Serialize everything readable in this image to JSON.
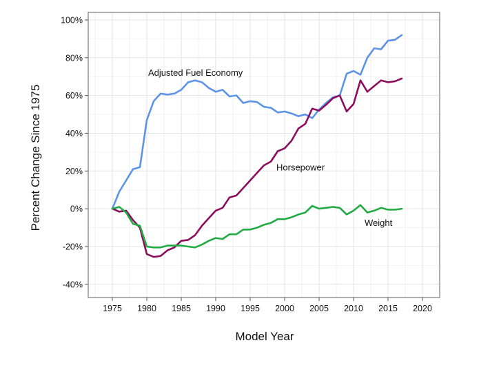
{
  "chart_data": {
    "type": "line",
    "title": "",
    "xlabel": "Model Year",
    "ylabel": "Percent Change Since 1975",
    "xlim": [
      1971.5,
      2022.5
    ],
    "ylim": [
      -47,
      104
    ],
    "grid": true,
    "x_ticks": [
      1975,
      1980,
      1985,
      1990,
      1995,
      2000,
      2005,
      2010,
      2015,
      2020
    ],
    "x_tick_labels": [
      "1975",
      "1980",
      "1985",
      "1990",
      "1995",
      "2000",
      "2005",
      "2010",
      "2015",
      "2020"
    ],
    "y_ticks": [
      -40,
      -20,
      0,
      20,
      40,
      60,
      80,
      100
    ],
    "y_tick_labels": [
      "-40%",
      "-20%",
      "0%",
      "20%",
      "40%",
      "60%",
      "80%",
      "100%"
    ],
    "x": [
      1975,
      1976,
      1977,
      1978,
      1979,
      1980,
      1981,
      1982,
      1983,
      1984,
      1985,
      1986,
      1987,
      1988,
      1989,
      1990,
      1991,
      1992,
      1993,
      1994,
      1995,
      1996,
      1997,
      1998,
      1999,
      2000,
      2001,
      2002,
      2003,
      2004,
      2005,
      2006,
      2007,
      2008,
      2009,
      2010,
      2011,
      2012,
      2013,
      2014,
      2015,
      2016,
      2017
    ],
    "series": [
      {
        "name": "Adjusted Fuel Economy",
        "color": "#5b93e8",
        "label_at": [
          1980.2,
          72
        ],
        "values": [
          0,
          9,
          15,
          21,
          22,
          47,
          57,
          61,
          60.5,
          61,
          63,
          67,
          68,
          67,
          64,
          62,
          63,
          59.5,
          60,
          56,
          57,
          56.5,
          54,
          53.5,
          51,
          51.5,
          50.5,
          49,
          50,
          48,
          52.5,
          56,
          59,
          60,
          71.5,
          73,
          71,
          80,
          85,
          84.5,
          89,
          89.5,
          92
        ]
      },
      {
        "name": "Horsepower",
        "color": "#8b0d5c",
        "label_at": [
          1998.8,
          22
        ],
        "values": [
          0,
          -1.5,
          -1,
          -6,
          -10,
          -24,
          -25.5,
          -25,
          -22,
          -20.5,
          -17,
          -16.5,
          -14,
          -9,
          -5,
          -1,
          0.5,
          6,
          7,
          11,
          15,
          19,
          23,
          25,
          30.5,
          32,
          36,
          42.5,
          45,
          53,
          52,
          55,
          58.5,
          60,
          51.5,
          55.5,
          68,
          62,
          65,
          68,
          67,
          67.5,
          69
        ]
      },
      {
        "name": "Weight",
        "color": "#22aa44",
        "label_at": [
          2011.6,
          -7.5
        ],
        "values": [
          0,
          1,
          -2,
          -8,
          -9,
          -20,
          -20.5,
          -20.5,
          -19.5,
          -19.5,
          -19.5,
          -20,
          -20.5,
          -19,
          -17,
          -15.5,
          -16,
          -13.5,
          -13.5,
          -11,
          -11,
          -10,
          -8.5,
          -7.5,
          -5.5,
          -5.5,
          -4.5,
          -3,
          -2,
          1.5,
          0,
          0.5,
          1,
          0.5,
          -3,
          -1,
          2,
          -2,
          -1,
          0.5,
          -0.5,
          -0.5,
          0
        ]
      }
    ]
  }
}
